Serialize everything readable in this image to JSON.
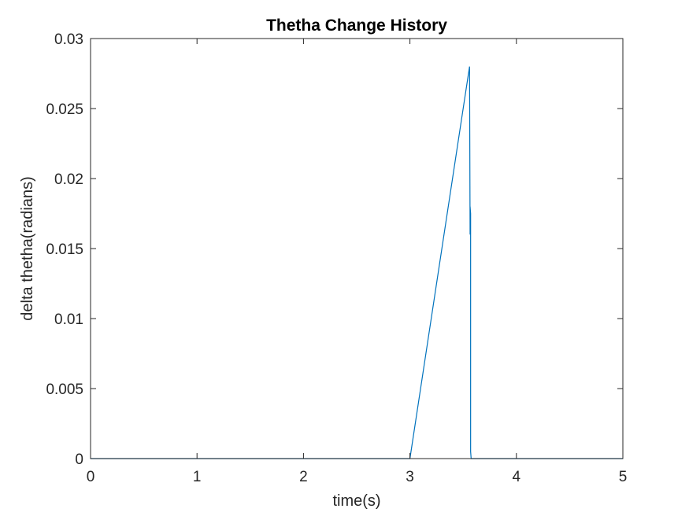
{
  "chart_data": {
    "type": "line",
    "title": "Thetha Change History",
    "xlabel": "time(s)",
    "ylabel": "delta thetha(radians)",
    "xlim": [
      0,
      5
    ],
    "ylim": [
      0,
      0.03
    ],
    "xticks": [
      0,
      1,
      2,
      3,
      4,
      5
    ],
    "xtick_labels": [
      "0",
      "1",
      "2",
      "3",
      "4",
      "5"
    ],
    "yticks": [
      0,
      0.005,
      0.01,
      0.015,
      0.02,
      0.025,
      0.03
    ],
    "ytick_labels": [
      "0",
      "0.005",
      "0.01",
      "0.015",
      "0.02",
      "0.025",
      "0.03"
    ],
    "grid": false,
    "series": [
      {
        "color": "#0072BD",
        "x": [
          0,
          3.0,
          3.56,
          3.565,
          3.565,
          3.57,
          3.57,
          3.575,
          3.6,
          5
        ],
        "y": [
          0,
          0,
          0.028,
          0.016,
          0.018,
          0.0175,
          0.0005,
          0,
          0,
          0
        ]
      }
    ]
  }
}
